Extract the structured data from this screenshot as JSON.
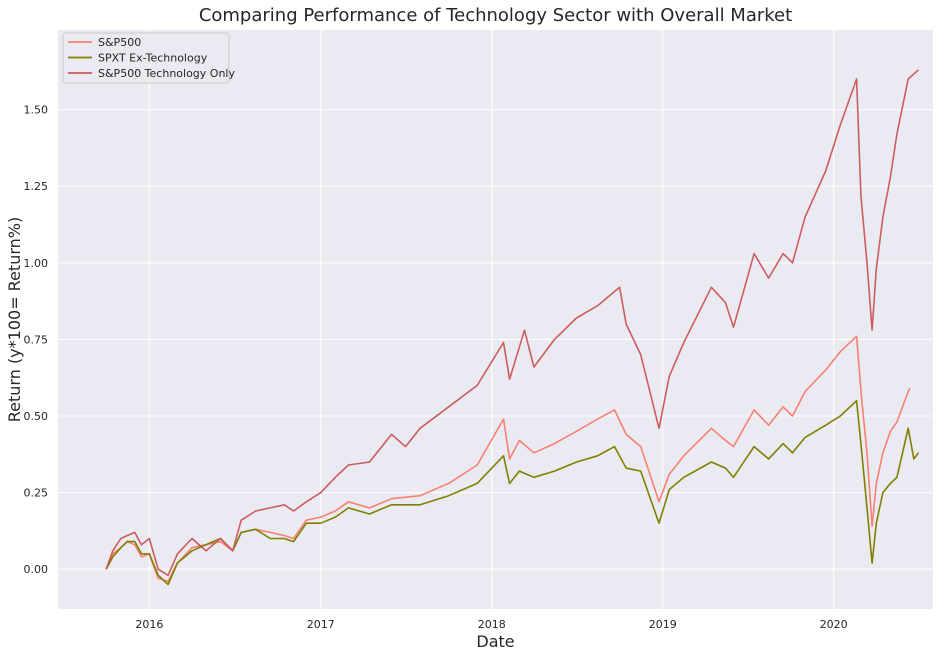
{
  "chart_data": {
    "type": "line",
    "title": "Comparing Performance of Technology Sector with Overall Market",
    "xlabel": "Date",
    "ylabel": "Return (y*100= Return%)",
    "x_tick_labels": [
      "2016",
      "2017",
      "2018",
      "2019",
      "2020"
    ],
    "y_tick_labels": [
      "0.00",
      "0.25",
      "0.50",
      "0.75",
      "1.00",
      "1.25",
      "1.50"
    ],
    "x_range": [
      "2015-06-20",
      "2020-07-31"
    ],
    "ylim": [
      -0.13,
      1.76
    ],
    "grid": true,
    "legend_position": "top-left",
    "background_color": "#eaeaf2",
    "grid_color": "#ffffff",
    "series": [
      {
        "name": "S&P500",
        "color": "#fa8072",
        "points": [
          [
            "2015-10-01",
            0.0
          ],
          [
            "2015-10-15",
            0.05
          ],
          [
            "2015-11-01",
            0.07
          ],
          [
            "2015-11-15",
            0.09
          ],
          [
            "2015-12-01",
            0.08
          ],
          [
            "2015-12-15",
            0.04
          ],
          [
            "2016-01-01",
            0.05
          ],
          [
            "2016-01-20",
            -0.03
          ],
          [
            "2016-02-10",
            -0.04
          ],
          [
            "2016-03-01",
            0.02
          ],
          [
            "2016-04-01",
            0.07
          ],
          [
            "2016-05-01",
            0.08
          ],
          [
            "2016-06-01",
            0.09
          ],
          [
            "2016-06-27",
            0.06
          ],
          [
            "2016-07-15",
            0.12
          ],
          [
            "2016-08-15",
            0.13
          ],
          [
            "2016-09-15",
            0.12
          ],
          [
            "2016-10-15",
            0.11
          ],
          [
            "2016-11-04",
            0.1
          ],
          [
            "2016-12-01",
            0.16
          ],
          [
            "2017-01-01",
            0.17
          ],
          [
            "2017-02-01",
            0.19
          ],
          [
            "2017-03-01",
            0.22
          ],
          [
            "2017-04-15",
            0.2
          ],
          [
            "2017-06-01",
            0.23
          ],
          [
            "2017-08-01",
            0.24
          ],
          [
            "2017-10-01",
            0.28
          ],
          [
            "2017-12-01",
            0.34
          ],
          [
            "2018-01-26",
            0.49
          ],
          [
            "2018-02-08",
            0.36
          ],
          [
            "2018-03-01",
            0.42
          ],
          [
            "2018-04-01",
            0.38
          ],
          [
            "2018-05-15",
            0.41
          ],
          [
            "2018-07-01",
            0.45
          ],
          [
            "2018-08-15",
            0.49
          ],
          [
            "2018-09-20",
            0.52
          ],
          [
            "2018-10-15",
            0.44
          ],
          [
            "2018-11-15",
            0.4
          ],
          [
            "2018-12-24",
            0.22
          ],
          [
            "2019-01-15",
            0.31
          ],
          [
            "2019-02-15",
            0.37
          ],
          [
            "2019-04-15",
            0.46
          ],
          [
            "2019-05-15",
            0.42
          ],
          [
            "2019-06-01",
            0.4
          ],
          [
            "2019-07-15",
            0.52
          ],
          [
            "2019-08-15",
            0.47
          ],
          [
            "2019-09-15",
            0.53
          ],
          [
            "2019-10-05",
            0.5
          ],
          [
            "2019-11-01",
            0.58
          ],
          [
            "2019-12-15",
            0.65
          ],
          [
            "2020-01-15",
            0.71
          ],
          [
            "2020-02-19",
            0.76
          ],
          [
            "2020-03-01",
            0.55
          ],
          [
            "2020-03-12",
            0.38
          ],
          [
            "2020-03-23",
            0.14
          ],
          [
            "2020-04-01",
            0.28
          ],
          [
            "2020-04-15",
            0.38
          ],
          [
            "2020-05-01",
            0.45
          ],
          [
            "2020-05-15",
            0.48
          ],
          [
            "2020-06-08",
            0.58
          ],
          [
            "2020-06-12",
            0.59
          ]
        ]
      },
      {
        "name": "SPXT Ex-Technology",
        "color": "#808000",
        "points": [
          [
            "2015-10-01",
            0.0
          ],
          [
            "2015-10-15",
            0.04
          ],
          [
            "2015-11-01",
            0.07
          ],
          [
            "2015-11-15",
            0.09
          ],
          [
            "2015-12-01",
            0.09
          ],
          [
            "2015-12-15",
            0.05
          ],
          [
            "2016-01-01",
            0.05
          ],
          [
            "2016-01-20",
            -0.02
          ],
          [
            "2016-02-10",
            -0.05
          ],
          [
            "2016-03-01",
            0.02
          ],
          [
            "2016-04-01",
            0.06
          ],
          [
            "2016-05-01",
            0.08
          ],
          [
            "2016-06-01",
            0.1
          ],
          [
            "2016-06-27",
            0.06
          ],
          [
            "2016-07-15",
            0.12
          ],
          [
            "2016-08-15",
            0.13
          ],
          [
            "2016-09-15",
            0.1
          ],
          [
            "2016-10-15",
            0.1
          ],
          [
            "2016-11-04",
            0.09
          ],
          [
            "2016-12-01",
            0.15
          ],
          [
            "2017-01-01",
            0.15
          ],
          [
            "2017-02-01",
            0.17
          ],
          [
            "2017-03-01",
            0.2
          ],
          [
            "2017-04-15",
            0.18
          ],
          [
            "2017-06-01",
            0.21
          ],
          [
            "2017-08-01",
            0.21
          ],
          [
            "2017-10-01",
            0.24
          ],
          [
            "2017-12-01",
            0.28
          ],
          [
            "2018-01-26",
            0.37
          ],
          [
            "2018-02-08",
            0.28
          ],
          [
            "2018-03-01",
            0.32
          ],
          [
            "2018-04-01",
            0.3
          ],
          [
            "2018-05-15",
            0.32
          ],
          [
            "2018-07-01",
            0.35
          ],
          [
            "2018-08-15",
            0.37
          ],
          [
            "2018-09-20",
            0.4
          ],
          [
            "2018-10-15",
            0.33
          ],
          [
            "2018-11-15",
            0.32
          ],
          [
            "2018-12-24",
            0.15
          ],
          [
            "2019-01-15",
            0.26
          ],
          [
            "2019-02-15",
            0.3
          ],
          [
            "2019-04-15",
            0.35
          ],
          [
            "2019-05-15",
            0.33
          ],
          [
            "2019-06-01",
            0.3
          ],
          [
            "2019-07-15",
            0.4
          ],
          [
            "2019-08-15",
            0.36
          ],
          [
            "2019-09-15",
            0.41
          ],
          [
            "2019-10-05",
            0.38
          ],
          [
            "2019-11-01",
            0.43
          ],
          [
            "2019-12-15",
            0.47
          ],
          [
            "2020-01-15",
            0.5
          ],
          [
            "2020-02-19",
            0.55
          ],
          [
            "2020-03-01",
            0.38
          ],
          [
            "2020-03-12",
            0.2
          ],
          [
            "2020-03-23",
            0.02
          ],
          [
            "2020-04-01",
            0.15
          ],
          [
            "2020-04-15",
            0.25
          ],
          [
            "2020-05-01",
            0.28
          ],
          [
            "2020-05-15",
            0.3
          ],
          [
            "2020-06-08",
            0.46
          ],
          [
            "2020-06-20",
            0.36
          ],
          [
            "2020-06-30",
            0.38
          ]
        ]
      },
      {
        "name": "S&P500 Technology Only",
        "color": "#cd5c5c",
        "points": [
          [
            "2015-10-01",
            0.0
          ],
          [
            "2015-10-15",
            0.06
          ],
          [
            "2015-11-01",
            0.1
          ],
          [
            "2015-11-15",
            0.11
          ],
          [
            "2015-12-01",
            0.12
          ],
          [
            "2015-12-15",
            0.08
          ],
          [
            "2016-01-01",
            0.1
          ],
          [
            "2016-01-20",
            0.0
          ],
          [
            "2016-02-10",
            -0.02
          ],
          [
            "2016-03-01",
            0.05
          ],
          [
            "2016-04-01",
            0.1
          ],
          [
            "2016-05-01",
            0.06
          ],
          [
            "2016-06-01",
            0.1
          ],
          [
            "2016-06-27",
            0.06
          ],
          [
            "2016-07-15",
            0.16
          ],
          [
            "2016-08-15",
            0.19
          ],
          [
            "2016-09-15",
            0.2
          ],
          [
            "2016-10-15",
            0.21
          ],
          [
            "2016-11-04",
            0.19
          ],
          [
            "2016-12-01",
            0.22
          ],
          [
            "2017-01-01",
            0.25
          ],
          [
            "2017-02-01",
            0.3
          ],
          [
            "2017-03-01",
            0.34
          ],
          [
            "2017-04-15",
            0.35
          ],
          [
            "2017-06-01",
            0.44
          ],
          [
            "2017-07-01",
            0.4
          ],
          [
            "2017-08-01",
            0.46
          ],
          [
            "2017-10-01",
            0.53
          ],
          [
            "2017-12-01",
            0.6
          ],
          [
            "2018-01-26",
            0.74
          ],
          [
            "2018-02-08",
            0.62
          ],
          [
            "2018-03-12",
            0.78
          ],
          [
            "2018-04-01",
            0.66
          ],
          [
            "2018-05-15",
            0.75
          ],
          [
            "2018-07-01",
            0.82
          ],
          [
            "2018-08-15",
            0.86
          ],
          [
            "2018-10-01",
            0.92
          ],
          [
            "2018-10-15",
            0.8
          ],
          [
            "2018-11-15",
            0.7
          ],
          [
            "2018-12-24",
            0.46
          ],
          [
            "2019-01-15",
            0.63
          ],
          [
            "2019-02-15",
            0.74
          ],
          [
            "2019-04-15",
            0.92
          ],
          [
            "2019-05-15",
            0.87
          ],
          [
            "2019-06-01",
            0.79
          ],
          [
            "2019-07-15",
            1.03
          ],
          [
            "2019-08-15",
            0.95
          ],
          [
            "2019-09-15",
            1.03
          ],
          [
            "2019-10-05",
            1.0
          ],
          [
            "2019-11-01",
            1.15
          ],
          [
            "2019-12-15",
            1.3
          ],
          [
            "2020-01-15",
            1.45
          ],
          [
            "2020-02-19",
            1.6
          ],
          [
            "2020-02-28",
            1.22
          ],
          [
            "2020-03-12",
            1.0
          ],
          [
            "2020-03-23",
            0.78
          ],
          [
            "2020-04-01",
            0.98
          ],
          [
            "2020-04-15",
            1.15
          ],
          [
            "2020-05-01",
            1.28
          ],
          [
            "2020-05-15",
            1.42
          ],
          [
            "2020-06-08",
            1.6
          ],
          [
            "2020-06-30",
            1.63
          ]
        ]
      }
    ]
  }
}
